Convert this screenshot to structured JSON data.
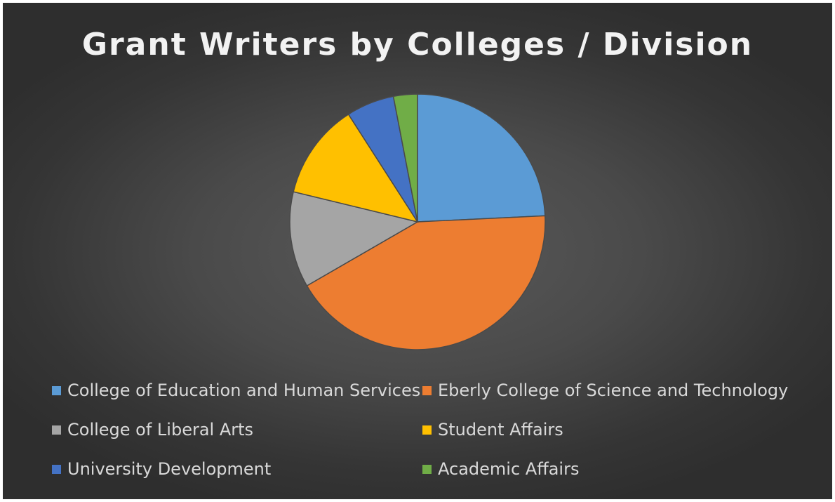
{
  "chart_data": {
    "type": "pie",
    "title": "Grant Writers by Colleges / Division",
    "categories": [
      "College of Education and Human Services",
      "Eberly College of Science and Technology",
      "College of Liberal Arts",
      "Student Affairs",
      "University Development",
      "Academic Affairs"
    ],
    "values": [
      8,
      14,
      4,
      4,
      2,
      1
    ],
    "colors": [
      "#5b9bd5",
      "#ed7d31",
      "#a5a5a5",
      "#ffc000",
      "#4472c4",
      "#70ad47"
    ],
    "legend_position": "bottom",
    "start_angle_deg": 0,
    "direction": "clockwise"
  }
}
